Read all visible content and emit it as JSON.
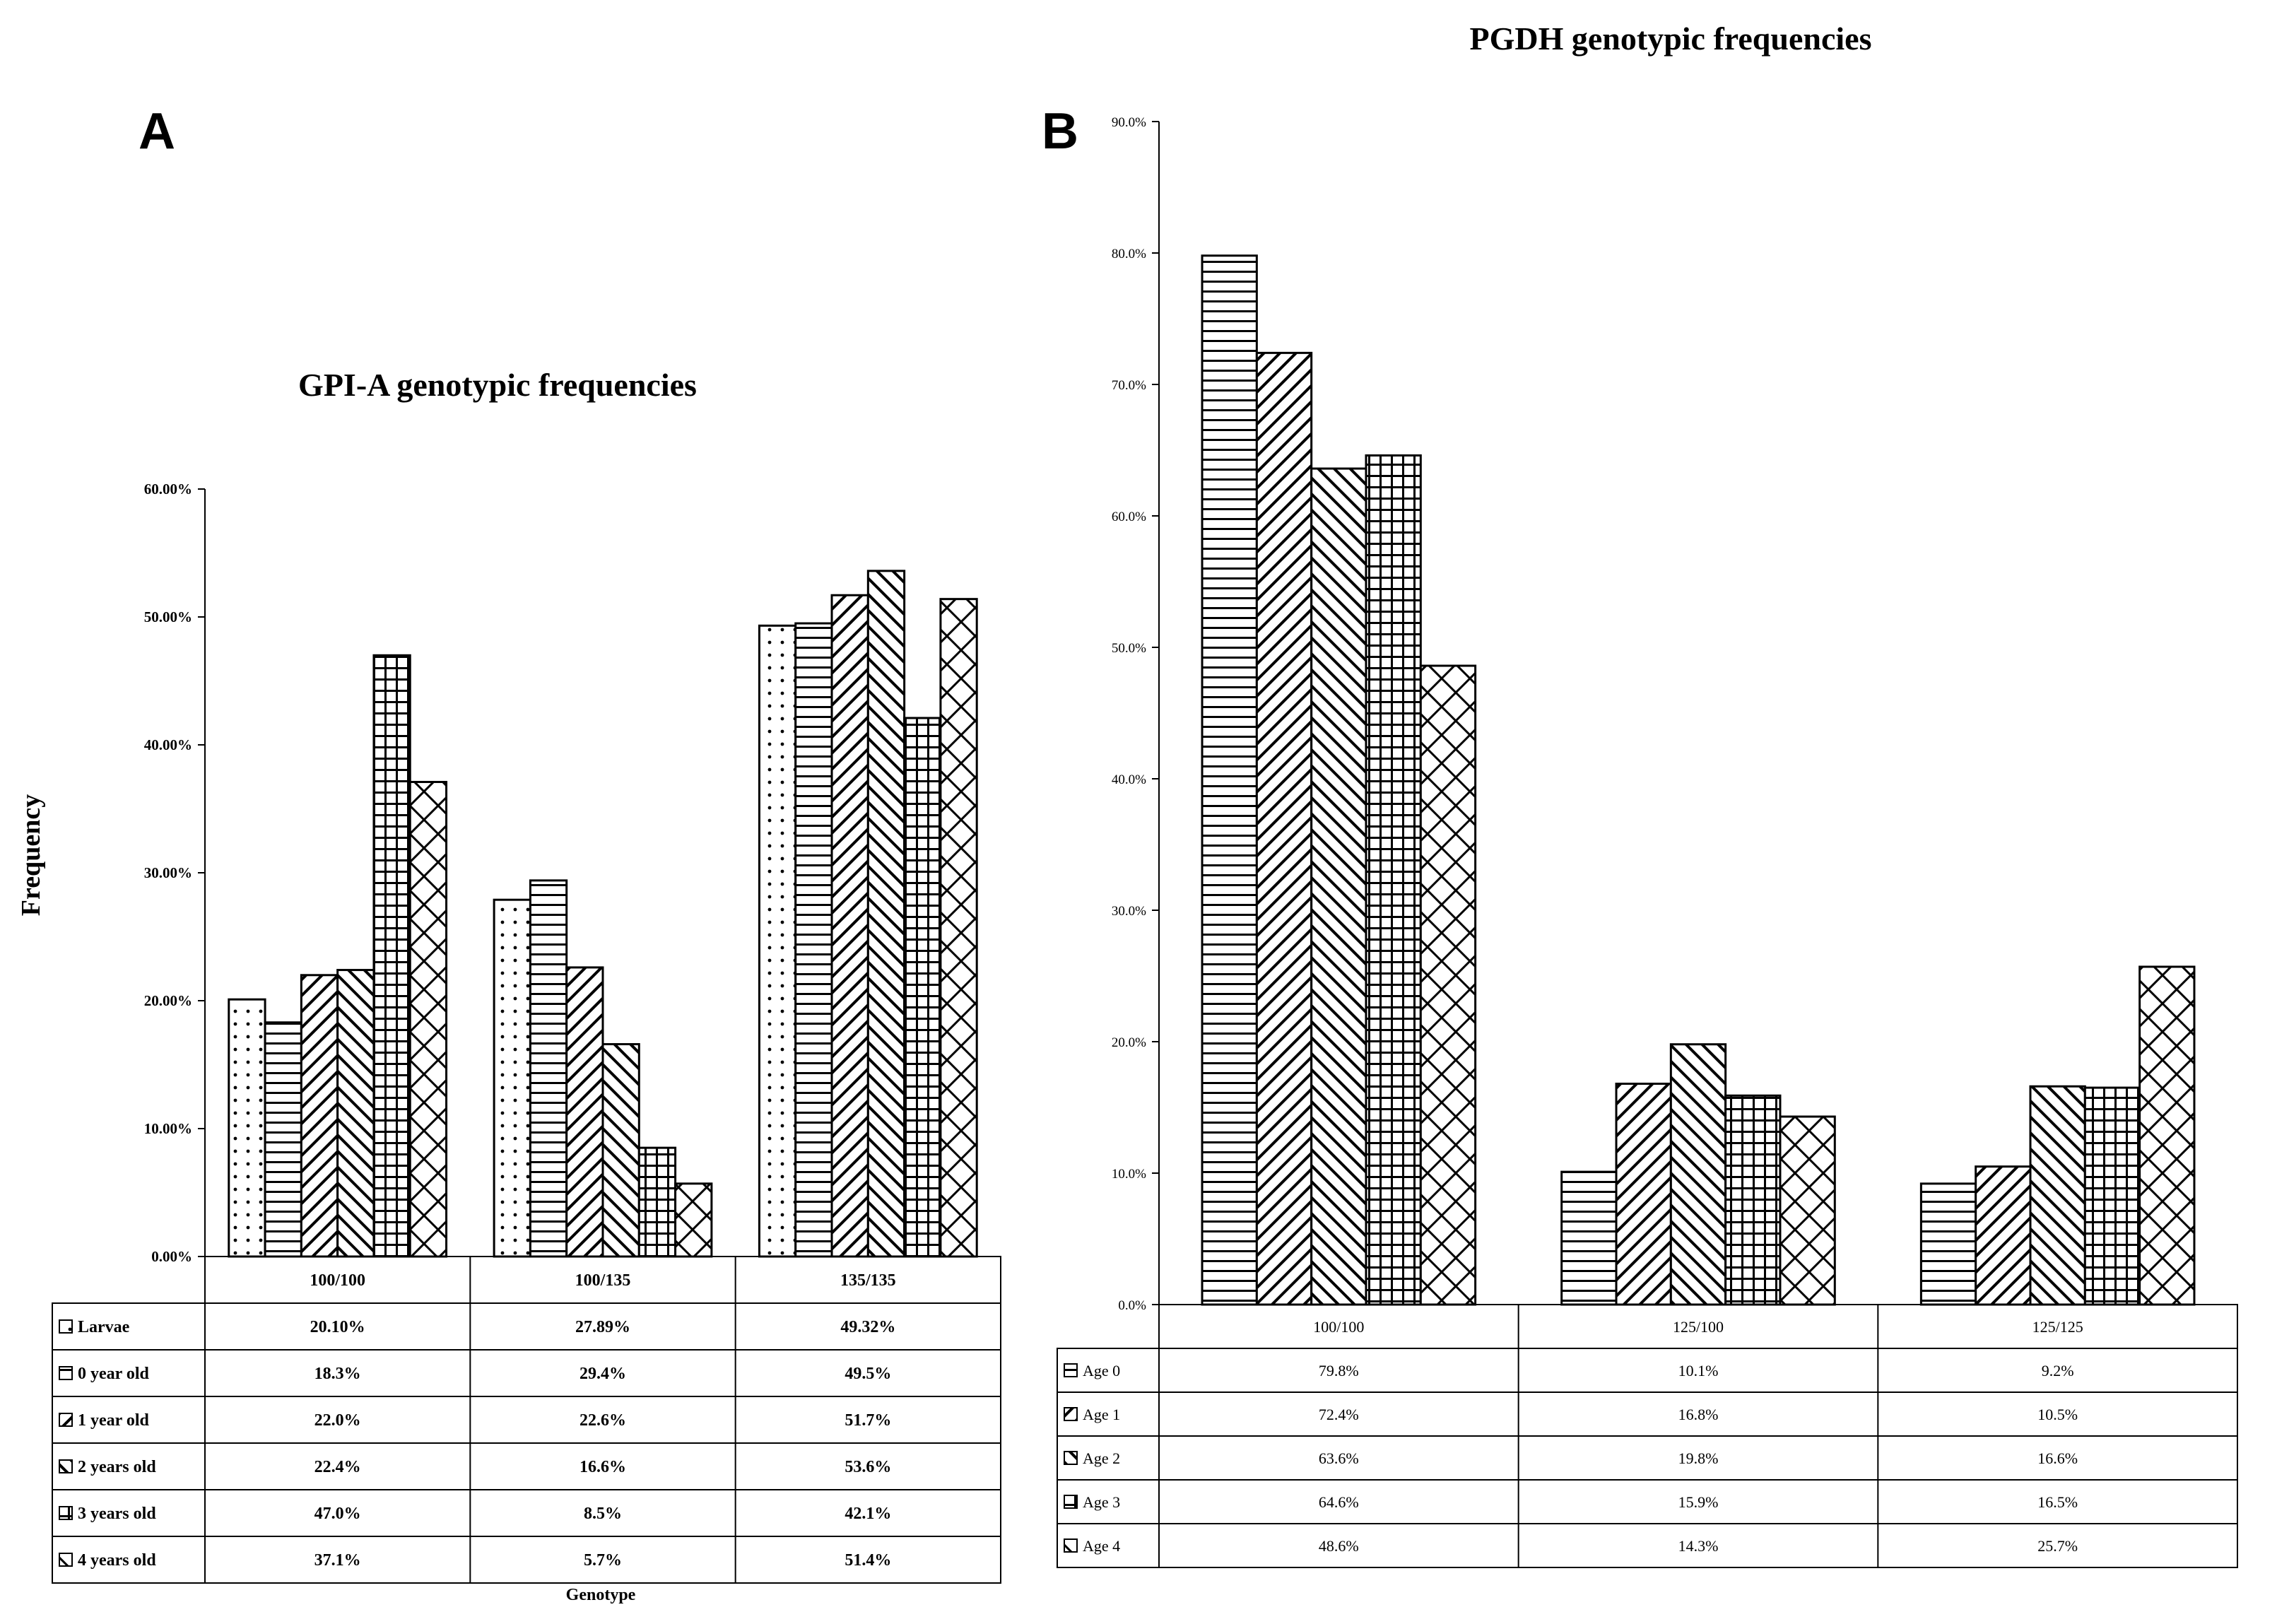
{
  "chart_data": [
    {
      "panel": "A",
      "type": "bar",
      "title": "GPI-A genotypic frequencies",
      "xlabel": "Genotype",
      "ylabel": "Frequency",
      "ylim": [
        0,
        60
      ],
      "yticks": [
        "0.00%",
        "10.00%",
        "20.00%",
        "30.00%",
        "40.00%",
        "50.00%",
        "60.00%"
      ],
      "categories": [
        "100/100",
        "100/135",
        "135/135"
      ],
      "legend_position": "table-below",
      "series": [
        {
          "name": "Larvae",
          "pattern": "dots",
          "values": [
            20.1,
            27.89,
            49.32
          ],
          "labels": [
            "20.10%",
            "27.89%",
            "49.32%"
          ]
        },
        {
          "name": "0 year old",
          "pattern": "hlines",
          "values": [
            18.3,
            29.4,
            49.5
          ],
          "labels": [
            "18.3%",
            "29.4%",
            "49.5%"
          ]
        },
        {
          "name": "1 year old",
          "pattern": "diag-down",
          "values": [
            22.0,
            22.6,
            51.7
          ],
          "labels": [
            "22.0%",
            "22.6%",
            "51.7%"
          ]
        },
        {
          "name": "2 years old",
          "pattern": "diag-up",
          "values": [
            22.4,
            16.6,
            53.6
          ],
          "labels": [
            "22.4%",
            "16.6%",
            "53.6%"
          ]
        },
        {
          "name": "3 years old",
          "pattern": "grid",
          "values": [
            47.0,
            8.5,
            42.1
          ],
          "labels": [
            "47.0%",
            "8.5%",
            "42.1%"
          ]
        },
        {
          "name": "4 years old",
          "pattern": "crosshatch",
          "values": [
            37.1,
            5.7,
            51.4
          ],
          "labels": [
            "37.1%",
            "5.7%",
            "51.4%"
          ]
        }
      ]
    },
    {
      "panel": "B",
      "type": "bar",
      "title": "PGDH genotypic frequencies",
      "xlabel": "",
      "ylabel": "",
      "ylim": [
        0,
        90
      ],
      "yticks": [
        "0.0%",
        "10.0%",
        "20.0%",
        "30.0%",
        "40.0%",
        "50.0%",
        "60.0%",
        "70.0%",
        "80.0%",
        "90.0%"
      ],
      "categories": [
        "100/100",
        "125/100",
        "125/125"
      ],
      "legend_position": "table-below",
      "series": [
        {
          "name": "Age 0",
          "pattern": "hlines",
          "values": [
            79.8,
            10.1,
            9.2
          ],
          "labels": [
            "79.8%",
            "10.1%",
            "9.2%"
          ]
        },
        {
          "name": "Age 1",
          "pattern": "diag-down",
          "values": [
            72.4,
            16.8,
            10.5
          ],
          "labels": [
            "72.4%",
            "16.8%",
            "10.5%"
          ]
        },
        {
          "name": "Age 2",
          "pattern": "diag-up",
          "values": [
            63.6,
            19.8,
            16.6
          ],
          "labels": [
            "63.6%",
            "19.8%",
            "16.6%"
          ]
        },
        {
          "name": "Age 3",
          "pattern": "grid",
          "values": [
            64.6,
            15.9,
            16.5
          ],
          "labels": [
            "64.6%",
            "15.9%",
            "16.5%"
          ]
        },
        {
          "name": "Age 4",
          "pattern": "crosshatch",
          "values": [
            48.6,
            14.3,
            25.7
          ],
          "labels": [
            "48.6%",
            "14.3%",
            "25.7%"
          ]
        }
      ]
    }
  ]
}
